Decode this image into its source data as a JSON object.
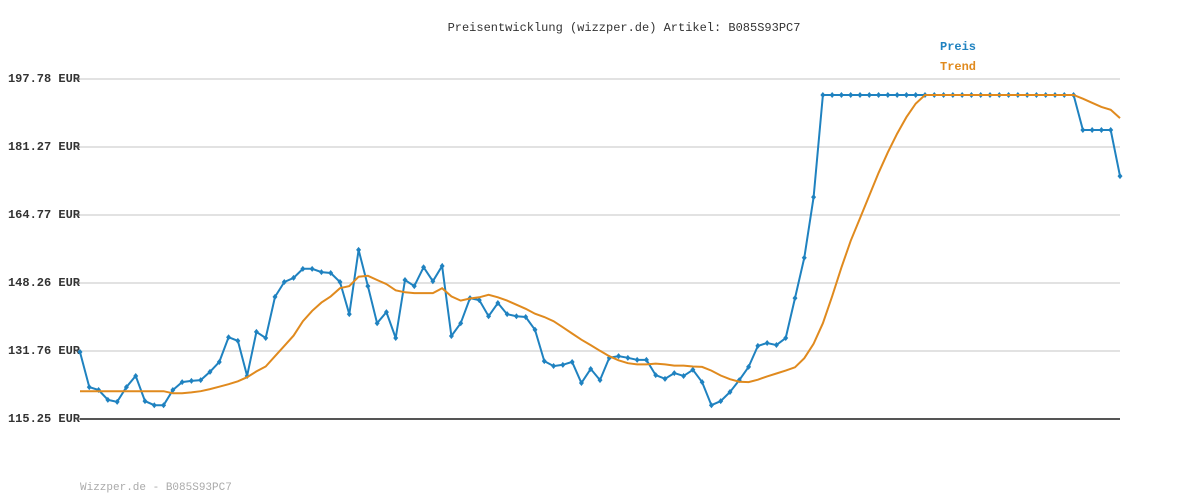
{
  "chart_data": {
    "type": "line",
    "title": "Preisentwicklung (wizzper.de) Artikel: B085S93PC7",
    "footer": "Wizzper.de - B085S93PC7",
    "ylim": [
      115.25,
      197.78
    ],
    "yticks": [
      {
        "value": 115.25,
        "label": "115.25 EUR"
      },
      {
        "value": 131.76,
        "label": "131.76 EUR"
      },
      {
        "value": 148.26,
        "label": "148.26 EUR"
      },
      {
        "value": 164.77,
        "label": "164.77 EUR"
      },
      {
        "value": 181.27,
        "label": "181.27 EUR"
      },
      {
        "value": 197.78,
        "label": "197.78 EUR"
      }
    ],
    "grid": true,
    "legend": "top-right",
    "series": [
      {
        "name": "Preis",
        "color": "#1f82c0",
        "markers": true,
        "values": [
          131.5,
          123.0,
          122.3,
          119.9,
          119.4,
          123.0,
          125.7,
          119.6,
          118.6,
          118.6,
          122.3,
          124.2,
          124.5,
          124.7,
          126.7,
          129.1,
          135.1,
          134.2,
          125.7,
          136.4,
          134.9,
          144.9,
          148.5,
          149.5,
          151.7,
          151.7,
          150.9,
          150.7,
          148.5,
          140.7,
          156.3,
          147.5,
          138.5,
          141.2,
          134.9,
          149.0,
          147.5,
          152.1,
          148.7,
          152.4,
          135.4,
          138.5,
          144.6,
          144.1,
          140.2,
          143.4,
          140.7,
          140.2,
          140.0,
          136.9,
          129.3,
          128.1,
          128.4,
          129.1,
          124.0,
          127.4,
          124.7,
          130.1,
          130.5,
          130.1,
          129.6,
          129.6,
          125.9,
          125.0,
          126.4,
          125.7,
          127.2,
          124.2,
          118.6,
          119.6,
          121.8,
          124.7,
          127.9,
          133.0,
          133.7,
          133.2,
          134.9,
          144.6,
          154.4,
          169.1,
          193.9,
          193.9,
          193.9,
          193.9,
          193.9,
          193.9,
          193.9,
          193.9,
          193.9,
          193.9,
          193.9,
          193.9,
          193.9,
          193.9,
          193.9,
          193.9,
          193.9,
          193.9,
          193.9,
          193.9,
          193.9,
          193.9,
          193.9,
          193.9,
          193.9,
          193.9,
          193.9,
          193.9,
          185.4,
          185.4,
          185.4,
          185.4,
          174.2
        ]
      },
      {
        "name": "Trend",
        "color": "#e08a1e",
        "markers": false,
        "values": [
          122.0,
          122.0,
          122.0,
          122.0,
          122.0,
          122.0,
          122.0,
          122.0,
          122.0,
          122.0,
          121.5,
          121.5,
          121.7,
          122.0,
          122.5,
          123.1,
          123.7,
          124.4,
          125.4,
          126.8,
          128.0,
          130.5,
          133.0,
          135.5,
          139.0,
          141.5,
          143.5,
          145.0,
          147.0,
          147.5,
          149.8,
          150.0,
          149.0,
          148.0,
          146.5,
          146.0,
          145.8,
          145.8,
          145.8,
          147.0,
          145.0,
          144.0,
          144.5,
          144.8,
          145.4,
          144.8,
          144.0,
          143.0,
          142.0,
          140.8,
          140.0,
          139.0,
          137.5,
          136.0,
          134.5,
          133.2,
          131.8,
          130.5,
          129.5,
          128.8,
          128.5,
          128.5,
          128.7,
          128.5,
          128.2,
          128.2,
          128.0,
          127.9,
          127.0,
          125.8,
          124.9,
          124.3,
          124.2,
          124.8,
          125.6,
          126.3,
          127.0,
          127.8,
          130.0,
          133.5,
          138.5,
          145.0,
          152.0,
          158.5,
          164.0,
          169.5,
          175.0,
          180.0,
          184.5,
          188.5,
          191.8,
          193.9,
          193.9,
          193.9,
          193.9,
          193.9,
          193.9,
          193.9,
          193.9,
          193.9,
          193.9,
          193.9,
          193.9,
          193.9,
          193.9,
          193.9,
          193.9,
          193.9,
          193.0,
          192.0,
          191.0,
          190.3,
          188.3
        ]
      }
    ]
  }
}
